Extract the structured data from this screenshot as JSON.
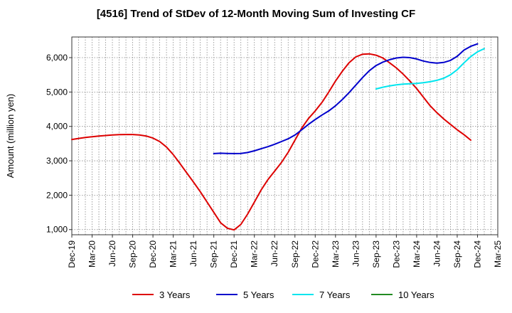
{
  "title": "[4516]  Trend of StDev of 12-Month Moving Sum of Investing CF",
  "chart_data": {
    "type": "line",
    "title": "[4516]  Trend of StDev of 12-Month Moving Sum of Investing CF",
    "xlabel": "",
    "ylabel": "Amount (million yen)",
    "x_ticks": [
      "Dec-19",
      "Mar-20",
      "Jun-20",
      "Sep-20",
      "Dec-20",
      "Mar-21",
      "Jun-21",
      "Sep-21",
      "Dec-21",
      "Mar-22",
      "Jun-22",
      "Sep-22",
      "Dec-22",
      "Mar-23",
      "Jun-23",
      "Sep-23",
      "Dec-23",
      "Mar-24",
      "Jun-24",
      "Sep-24",
      "Dec-24",
      "Mar-25"
    ],
    "y_ticks": [
      "1,000",
      "2,000",
      "3,000",
      "4,000",
      "5,000",
      "6,000"
    ],
    "y_tick_values": [
      1000,
      2000,
      3000,
      4000,
      5000,
      6000
    ],
    "ylim": [
      850,
      6600
    ],
    "grid": true,
    "legend_position": "bottom",
    "series": [
      {
        "name": "3 Years",
        "color": "#dd0000",
        "points": [
          [
            "Dec-19",
            3620
          ],
          [
            "Jan-20",
            3650
          ],
          [
            "Feb-20",
            3680
          ],
          [
            "Mar-20",
            3700
          ],
          [
            "Apr-20",
            3720
          ],
          [
            "May-20",
            3735
          ],
          [
            "Jun-20",
            3750
          ],
          [
            "Jul-20",
            3760
          ],
          [
            "Aug-20",
            3765
          ],
          [
            "Sep-20",
            3765
          ],
          [
            "Oct-20",
            3750
          ],
          [
            "Nov-20",
            3720
          ],
          [
            "Dec-20",
            3660
          ],
          [
            "Jan-21",
            3560
          ],
          [
            "Feb-21",
            3400
          ],
          [
            "Mar-21",
            3180
          ],
          [
            "Apr-21",
            2920
          ],
          [
            "May-21",
            2650
          ],
          [
            "Jun-21",
            2380
          ],
          [
            "Jul-21",
            2100
          ],
          [
            "Aug-21",
            1800
          ],
          [
            "Sep-21",
            1500
          ],
          [
            "Oct-21",
            1200
          ],
          [
            "Nov-21",
            1040
          ],
          [
            "Dec-21",
            990
          ],
          [
            "Jan-22",
            1150
          ],
          [
            "Feb-22",
            1450
          ],
          [
            "Mar-22",
            1800
          ],
          [
            "Apr-22",
            2150
          ],
          [
            "May-22",
            2450
          ],
          [
            "Jun-22",
            2700
          ],
          [
            "Jul-22",
            2950
          ],
          [
            "Aug-22",
            3250
          ],
          [
            "Sep-22",
            3600
          ],
          [
            "Oct-22",
            3950
          ],
          [
            "Nov-22",
            4230
          ],
          [
            "Dec-22",
            4450
          ],
          [
            "Jan-23",
            4700
          ],
          [
            "Feb-23",
            5000
          ],
          [
            "Mar-23",
            5320
          ],
          [
            "Apr-23",
            5600
          ],
          [
            "May-23",
            5850
          ],
          [
            "Jun-23",
            6020
          ],
          [
            "Jul-23",
            6100
          ],
          [
            "Aug-23",
            6110
          ],
          [
            "Sep-23",
            6070
          ],
          [
            "Oct-23",
            5990
          ],
          [
            "Nov-23",
            5850
          ],
          [
            "Dec-23",
            5700
          ],
          [
            "Jan-24",
            5520
          ],
          [
            "Feb-24",
            5320
          ],
          [
            "Mar-24",
            5100
          ],
          [
            "Apr-24",
            4850
          ],
          [
            "May-24",
            4600
          ],
          [
            "Jun-24",
            4400
          ],
          [
            "Jul-24",
            4220
          ],
          [
            "Aug-24",
            4060
          ],
          [
            "Sep-24",
            3900
          ],
          [
            "Oct-24",
            3760
          ],
          [
            "Nov-24",
            3600
          ]
        ]
      },
      {
        "name": "5 Years",
        "color": "#0000cc",
        "points": [
          [
            "Sep-21",
            3210
          ],
          [
            "Oct-21",
            3220
          ],
          [
            "Nov-21",
            3215
          ],
          [
            "Dec-21",
            3210
          ],
          [
            "Jan-22",
            3215
          ],
          [
            "Feb-22",
            3240
          ],
          [
            "Mar-22",
            3290
          ],
          [
            "Apr-22",
            3350
          ],
          [
            "May-22",
            3410
          ],
          [
            "Jun-22",
            3480
          ],
          [
            "Jul-22",
            3560
          ],
          [
            "Aug-22",
            3640
          ],
          [
            "Sep-22",
            3750
          ],
          [
            "Oct-22",
            3900
          ],
          [
            "Nov-22",
            4060
          ],
          [
            "Dec-22",
            4200
          ],
          [
            "Jan-23",
            4330
          ],
          [
            "Feb-23",
            4450
          ],
          [
            "Mar-23",
            4600
          ],
          [
            "Apr-23",
            4780
          ],
          [
            "May-23",
            4980
          ],
          [
            "Jun-23",
            5200
          ],
          [
            "Jul-23",
            5420
          ],
          [
            "Aug-23",
            5620
          ],
          [
            "Sep-23",
            5770
          ],
          [
            "Oct-23",
            5870
          ],
          [
            "Nov-23",
            5940
          ],
          [
            "Dec-23",
            5990
          ],
          [
            "Jan-24",
            6010
          ],
          [
            "Feb-24",
            6000
          ],
          [
            "Mar-24",
            5960
          ],
          [
            "Apr-24",
            5900
          ],
          [
            "May-24",
            5860
          ],
          [
            "Jun-24",
            5840
          ],
          [
            "Jul-24",
            5860
          ],
          [
            "Aug-24",
            5920
          ],
          [
            "Sep-24",
            6040
          ],
          [
            "Oct-24",
            6220
          ],
          [
            "Nov-24",
            6330
          ],
          [
            "Dec-24",
            6400
          ]
        ]
      },
      {
        "name": "7 Years",
        "color": "#00e5ee",
        "points": [
          [
            "Sep-23",
            5090
          ],
          [
            "Oct-23",
            5140
          ],
          [
            "Nov-23",
            5180
          ],
          [
            "Dec-23",
            5210
          ],
          [
            "Jan-24",
            5230
          ],
          [
            "Feb-24",
            5240
          ],
          [
            "Mar-24",
            5250
          ],
          [
            "Apr-24",
            5270
          ],
          [
            "May-24",
            5300
          ],
          [
            "Jun-24",
            5340
          ],
          [
            "Jul-24",
            5400
          ],
          [
            "Aug-24",
            5500
          ],
          [
            "Sep-24",
            5650
          ],
          [
            "Oct-24",
            5850
          ],
          [
            "Nov-24",
            6030
          ],
          [
            "Dec-24",
            6170
          ],
          [
            "Jan-25",
            6260
          ]
        ]
      },
      {
        "name": "10 Years",
        "color": "#228b22",
        "points": []
      }
    ]
  }
}
